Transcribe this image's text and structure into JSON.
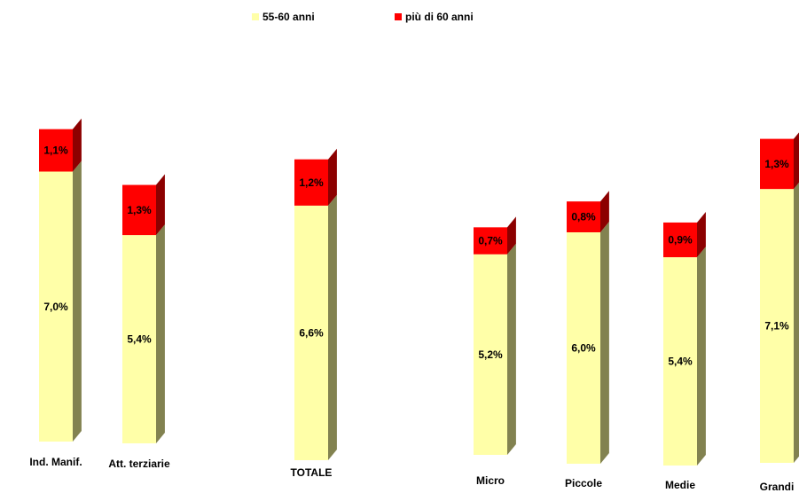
{
  "chart_data": {
    "type": "bar",
    "stacked": true,
    "legend_position": "top",
    "categories": [
      "Ind. Manif.",
      "Att. terziarie",
      "TOTALE",
      "Micro",
      "Piccole",
      "Medie",
      "Grandi"
    ],
    "series": [
      {
        "name": "55-60 anni",
        "color": "#ffffa8",
        "side_color": "#828250",
        "values": [
          7.0,
          5.4,
          6.6,
          5.2,
          6.0,
          5.4,
          7.1
        ],
        "labels": [
          "7,0%",
          "5,4%",
          "6,6%",
          "5,2%",
          "6,0%",
          "5,4%",
          "7,1%"
        ]
      },
      {
        "name": "più di 60 anni",
        "color": "#ff0000",
        "side_color": "#8c0000",
        "values": [
          1.1,
          1.3,
          1.2,
          0.7,
          0.8,
          0.9,
          1.3
        ],
        "labels": [
          "1,1%",
          "1,3%",
          "1,2%",
          "0,7%",
          "0,8%",
          "0,9%",
          "1,3%"
        ]
      }
    ]
  }
}
